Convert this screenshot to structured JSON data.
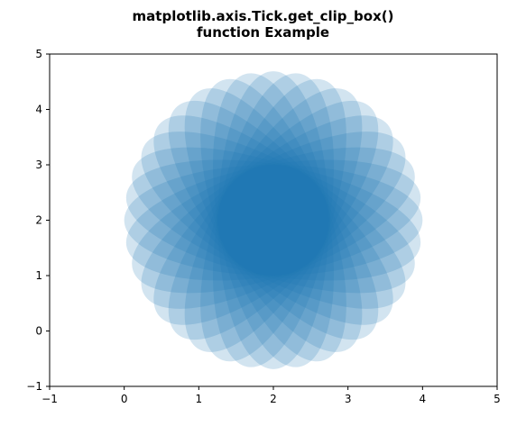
{
  "title": {
    "line1": "matplotlib.axis.Tick.get_clip_box()",
    "line2": "function Example"
  },
  "chart_data": {
    "type": "scatter",
    "marker": "rotated-ellipse",
    "description_color": "#1f77b4",
    "ellipse_alpha": 0.2,
    "ellipses": {
      "count": 18,
      "center": [
        2,
        2
      ],
      "width": 4,
      "height": 2,
      "angle_start_deg": 0,
      "angle_step_deg": 10
    },
    "xlim": [
      -1,
      5
    ],
    "ylim": [
      -1,
      5
    ],
    "xticks": [
      "−1",
      "0",
      "1",
      "2",
      "3",
      "4",
      "5"
    ],
    "yticks": [
      "−1",
      "0",
      "1",
      "2",
      "3",
      "4",
      "5"
    ],
    "xtick_values": [
      -1,
      0,
      1,
      2,
      3,
      4,
      5
    ],
    "ytick_values": [
      -1,
      0,
      1,
      2,
      3,
      4,
      5
    ],
    "xlabel": "",
    "ylabel": "",
    "grid": false,
    "legend": false
  }
}
